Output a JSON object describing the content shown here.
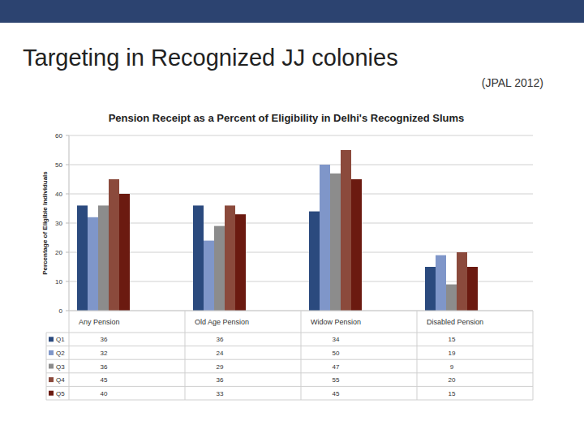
{
  "slide": {
    "title": "Targeting in Recognized JJ colonies",
    "source": "(JPAL 2012)"
  },
  "chart_data": {
    "type": "bar",
    "title": "Pension Receipt as  a Percent of Eligibility in Delhi's Recognized Slums",
    "y_label": "Percentage of Eligible Individuals",
    "categories": [
      "Any Pension",
      "Old Age Pension",
      "Widow Pension",
      "Disabled Pension"
    ],
    "series": [
      {
        "name": "Q1",
        "color": "#2b4a7e",
        "values": [
          36,
          36,
          34,
          15
        ]
      },
      {
        "name": "Q2",
        "color": "#7f96c9",
        "values": [
          32,
          24,
          50,
          19
        ]
      },
      {
        "name": "Q3",
        "color": "#8c8c8c",
        "values": [
          36,
          29,
          47,
          9
        ]
      },
      {
        "name": "Q4",
        "color": "#8b4a3c",
        "values": [
          45,
          36,
          55,
          20
        ]
      },
      {
        "name": "Q5",
        "color": "#6b1a10",
        "values": [
          40,
          33,
          45,
          15
        ]
      }
    ],
    "ylim": [
      0,
      60
    ],
    "yticks": [
      0,
      10,
      20,
      30,
      40,
      50,
      60
    ],
    "grid": true
  }
}
